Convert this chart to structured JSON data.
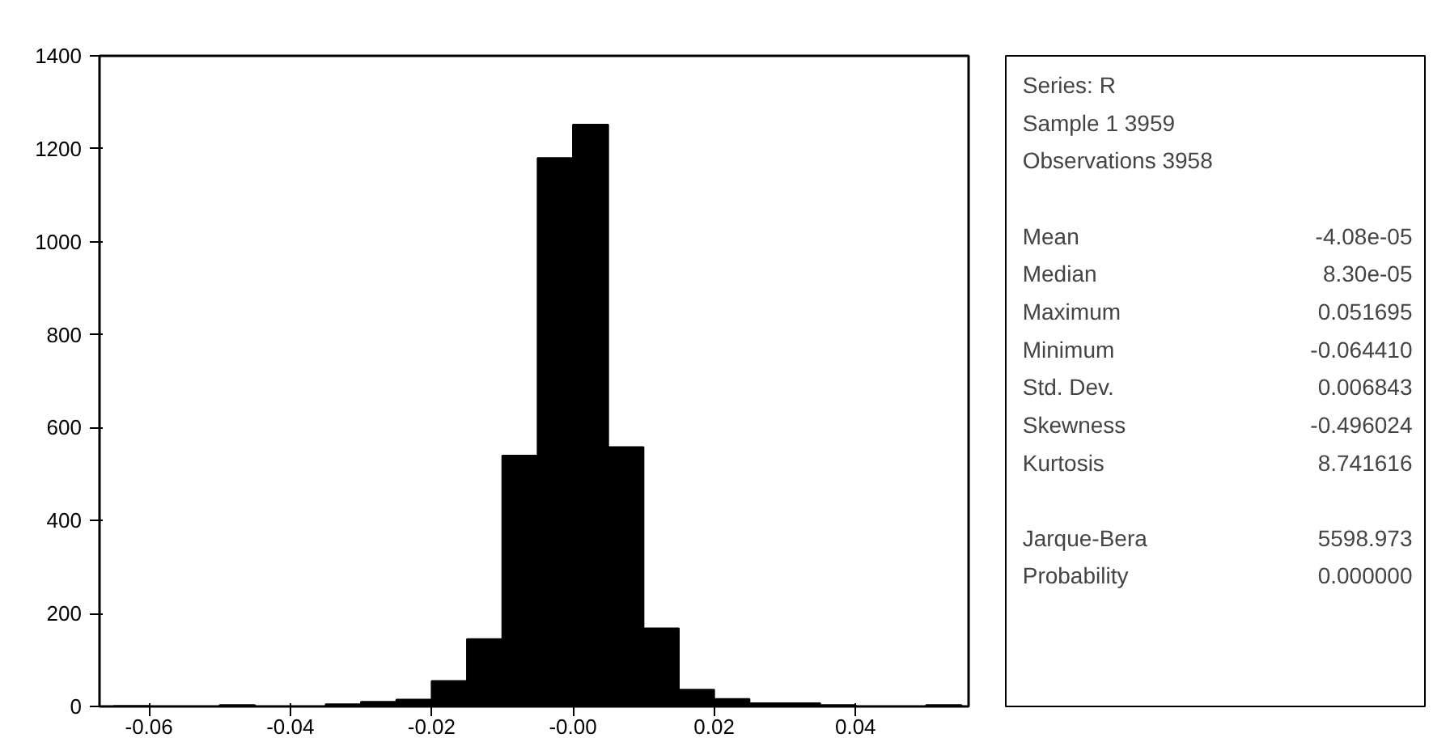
{
  "chart_data": {
    "type": "histogram",
    "bins": [
      -0.065,
      -0.06,
      -0.055,
      -0.05,
      -0.045,
      -0.04,
      -0.035,
      -0.03,
      -0.025,
      -0.02,
      -0.015,
      -0.01,
      -0.005,
      0,
      0.005,
      0.01,
      0.015,
      0.02,
      0.025,
      0.03,
      0.035,
      0.04,
      0.045,
      0.05,
      0.055
    ],
    "values": [
      1,
      0,
      0,
      3,
      0,
      null,
      5,
      10,
      15,
      55,
      145,
      540,
      1180,
      1252,
      558,
      168,
      36,
      16,
      7,
      7,
      3,
      null,
      null,
      3
    ],
    "color": "#000000",
    "xlim": [
      -0.067,
      0.056
    ],
    "xticks": [
      -0.06,
      -0.04,
      -0.02,
      {
        "value": 0,
        "label": "-0.00"
      },
      0.02,
      0.04
    ],
    "ylim": [
      0,
      1400
    ],
    "yticks": [
      0,
      200,
      400,
      600,
      800,
      1000,
      1200,
      1400
    ],
    "grid": false,
    "annotations": [
      "Series: R",
      "Sample 1 3959",
      "Observations 3958",
      "Mean\t-4.08e-05",
      "Median\t8.30e-05",
      "Maximum\t0.051695",
      "Minimum\t-0.064410",
      "Std. Dev.\t0.006843",
      "Skewness\t-0.496024",
      "Kurtosis\t8.741616",
      "Jarque-Bera\t5598.973",
      "Probability\t0.000000"
    ]
  }
}
